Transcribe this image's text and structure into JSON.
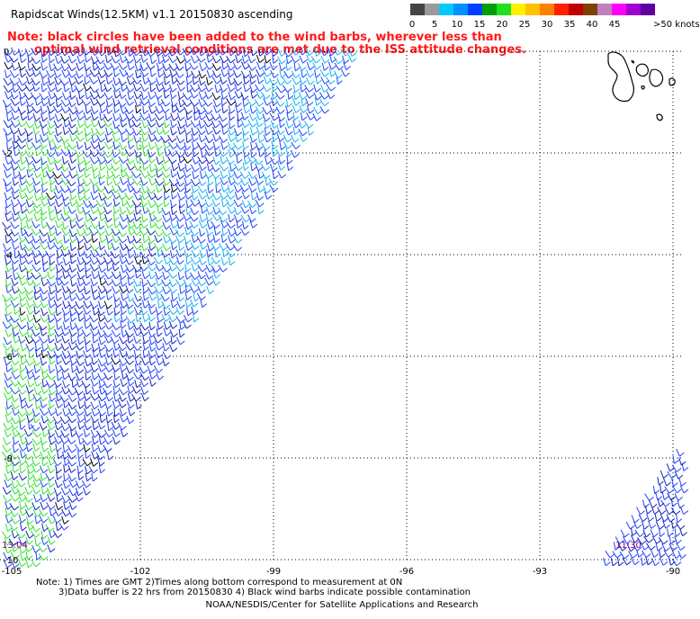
{
  "title": "Rapidscat Winds(12.5KM) v1.1 20150830 ascending",
  "note": {
    "line1": "Note: black circles have been added to the wind barbs, wherever less than",
    "line2": "optimal wind retrieval conditions are met due to the ISS attitude changes."
  },
  "legend": {
    "colors": [
      "#444444",
      "#9a9a9a",
      "#00c8ff",
      "#0090ff",
      "#0040ff",
      "#00a000",
      "#20e020",
      "#fff000",
      "#ffc000",
      "#ff8000",
      "#ff2000",
      "#c00000",
      "#804000",
      "#c080c0",
      "#ff00ff",
      "#a000d0",
      "#6000a0"
    ],
    "labels": [
      "0",
      "5",
      "10",
      "15",
      "20",
      "25",
      "30",
      "35",
      "40",
      "45"
    ],
    "max_label": ">50 knots"
  },
  "map": {
    "x_ticks": [
      "-105",
      "-102",
      "-99",
      "-96",
      "-93",
      "-90"
    ],
    "y_ticks": [
      "0",
      "-2",
      "-4",
      "-6",
      "-8",
      "-10"
    ],
    "time_left": "13:04",
    "time_right": "11:30"
  },
  "footnotes": {
    "line1": "Note: 1) Times are GMT 2)Times along bottom correspond to measurement at 0N",
    "line2": "3)Data buffer is 22 hrs from 20150830 4) Black wind barbs indicate possible contamination"
  },
  "credit": "NOAA/NESDIS/Center for Satellite Applications and Research"
}
